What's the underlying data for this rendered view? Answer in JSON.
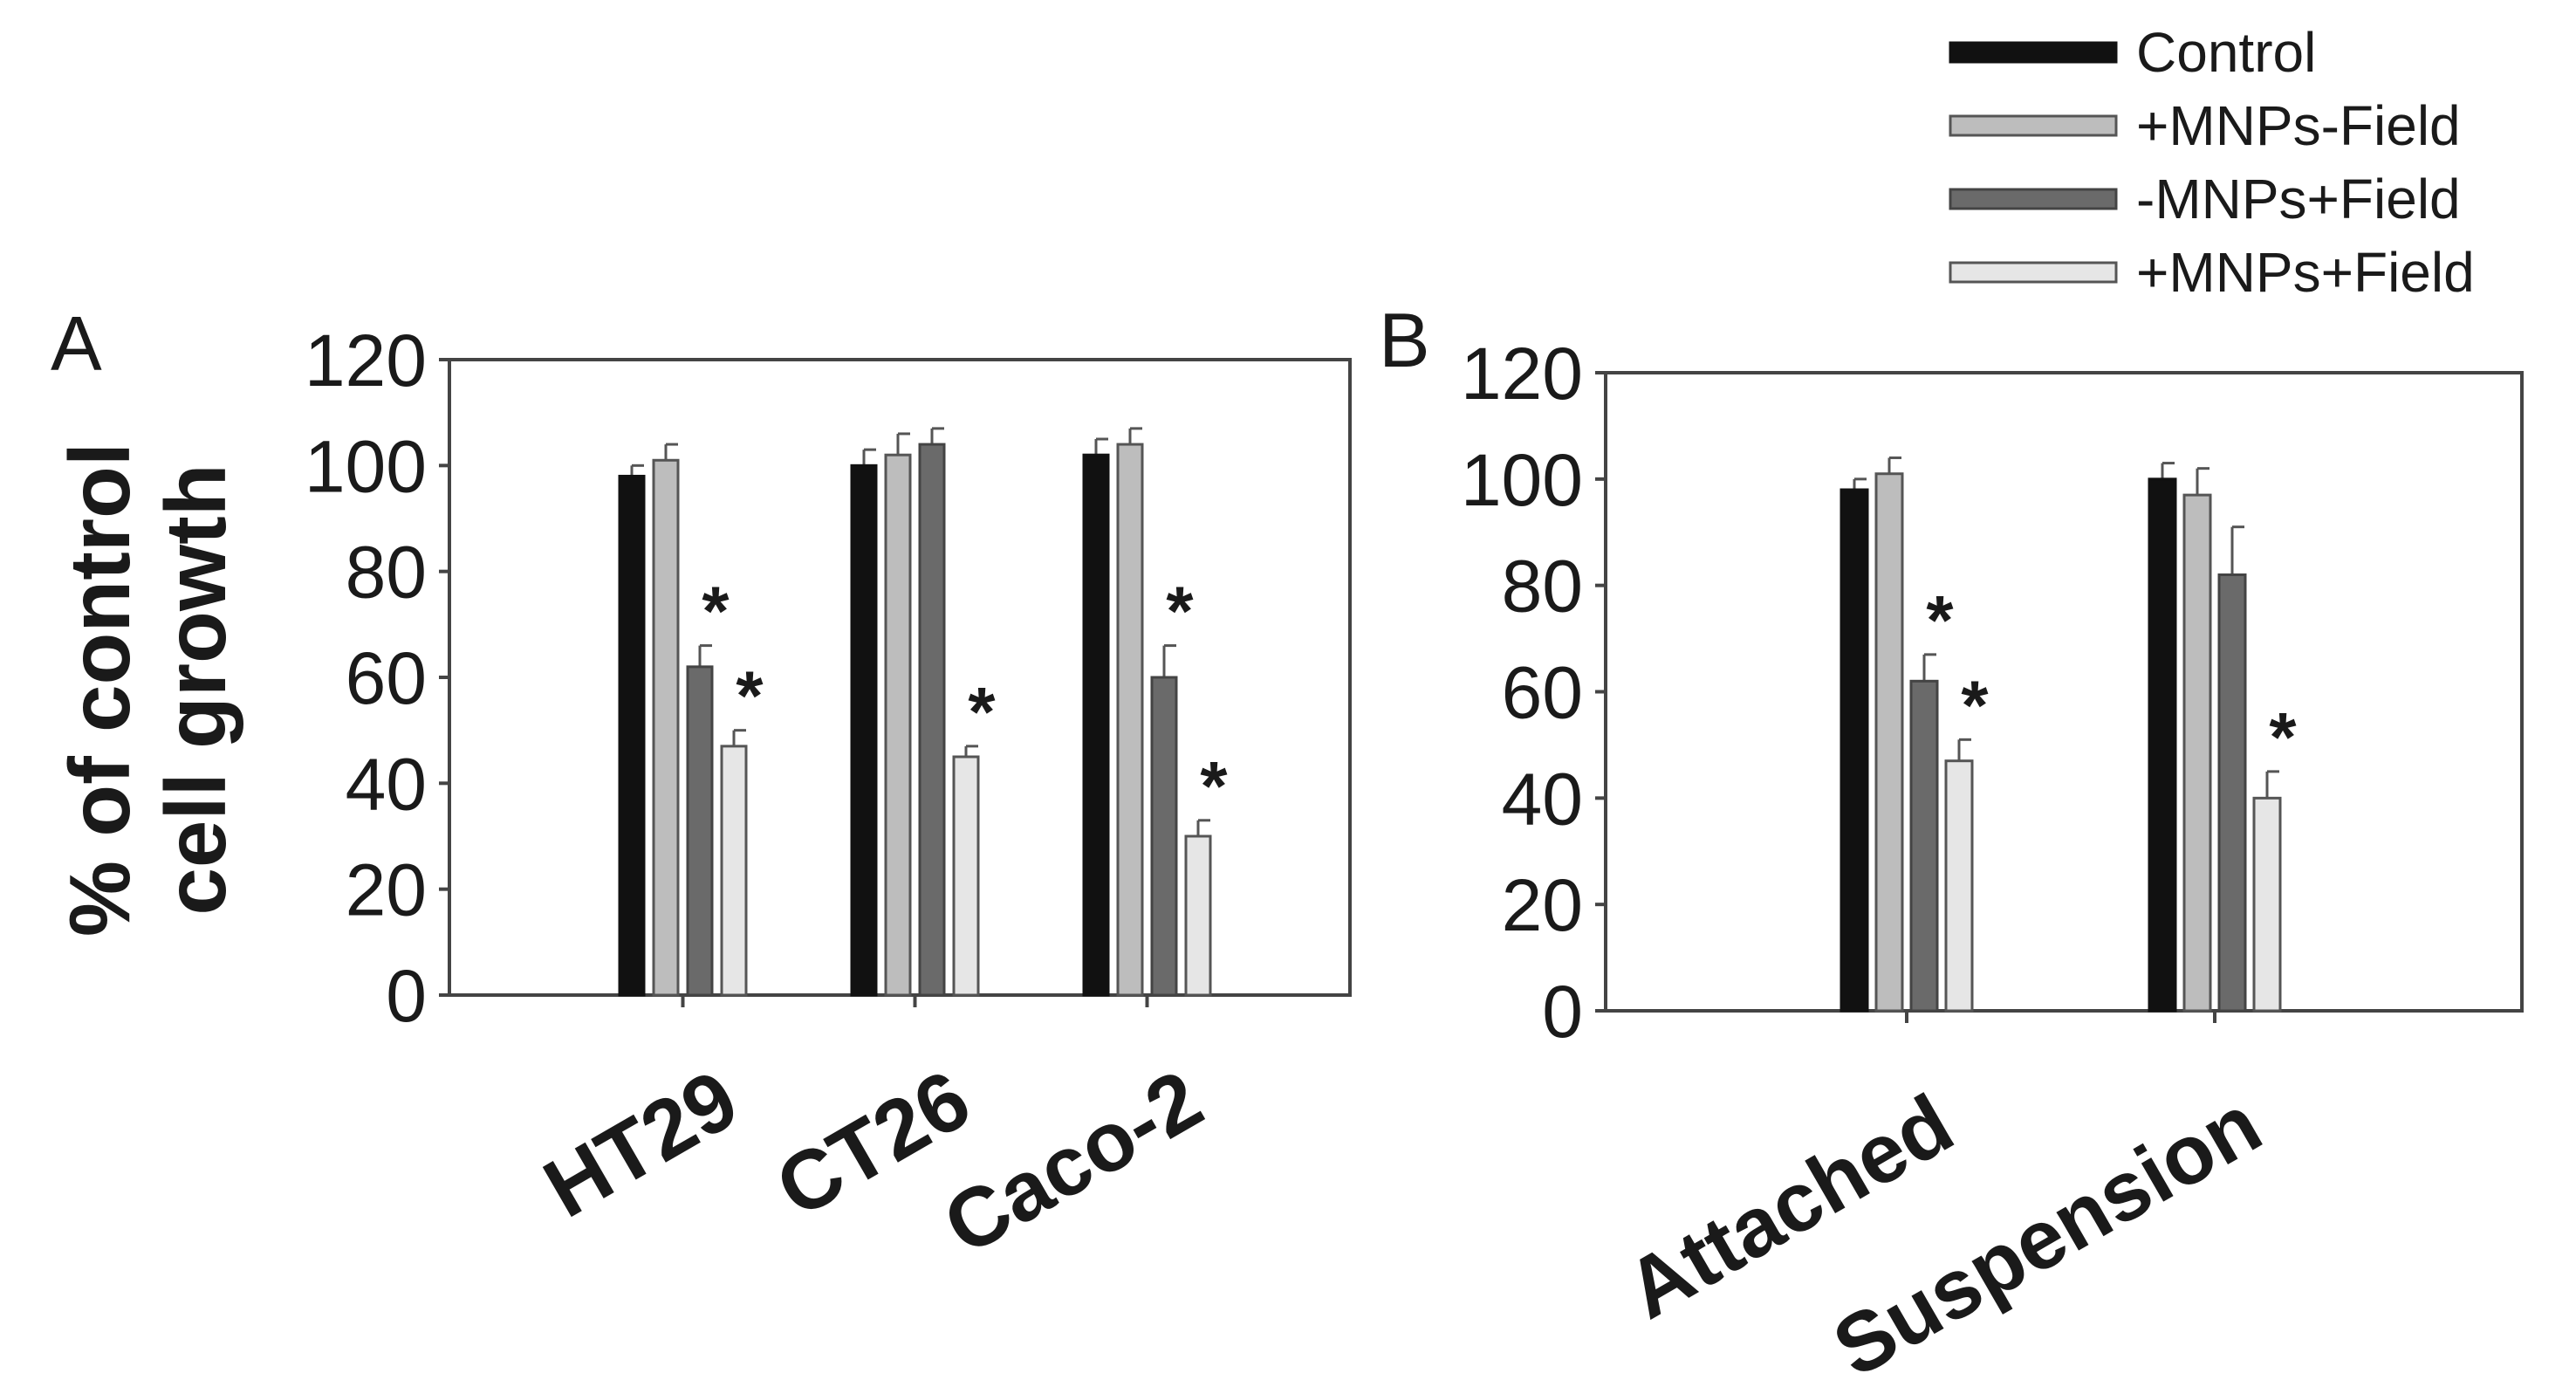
{
  "legend": [
    {
      "label": "Control",
      "fill": "#111111",
      "stroke": "#111111"
    },
    {
      "label": "+MNPs-Field",
      "fill": "#bdbdbd",
      "stroke": "#555555"
    },
    {
      "label": "-MNPs+Field",
      "fill": "#6a6a6a",
      "stroke": "#444444"
    },
    {
      "label": "+MNPs+Field",
      "fill": "#e6e6e6",
      "stroke": "#555555"
    }
  ],
  "chart_data": [
    {
      "type": "bar",
      "panel": "A",
      "ylabel_line1": "% of control",
      "ylabel_line2": "cell growth",
      "ylim": [
        0,
        120
      ],
      "yticks": [
        0,
        20,
        40,
        60,
        80,
        100,
        120
      ],
      "categories": [
        "HT29",
        "CT26",
        "Caco-2"
      ],
      "series": [
        {
          "name": "Control",
          "values": [
            98,
            100,
            102
          ],
          "errors": [
            2,
            3,
            3
          ],
          "significant": [
            false,
            false,
            false
          ]
        },
        {
          "name": "+MNPs-Field",
          "values": [
            101,
            102,
            104
          ],
          "errors": [
            3,
            4,
            3
          ],
          "significant": [
            false,
            false,
            false
          ]
        },
        {
          "name": "-MNPs+Field",
          "values": [
            62,
            104,
            60
          ],
          "errors": [
            4,
            3,
            6
          ],
          "significant": [
            true,
            false,
            true
          ]
        },
        {
          "name": "+MNPs+Field",
          "values": [
            47,
            45,
            30
          ],
          "errors": [
            3,
            2,
            3
          ],
          "significant": [
            true,
            true,
            true
          ]
        }
      ],
      "significance_mark": "*"
    },
    {
      "type": "bar",
      "panel": "B",
      "ylim": [
        0,
        120
      ],
      "yticks": [
        0,
        20,
        40,
        60,
        80,
        100,
        120
      ],
      "categories": [
        "Attached",
        "Suspension"
      ],
      "series": [
        {
          "name": "Control",
          "values": [
            98,
            100
          ],
          "errors": [
            2,
            3
          ],
          "significant": [
            false,
            false
          ]
        },
        {
          "name": "+MNPs-Field",
          "values": [
            101,
            97
          ],
          "errors": [
            3,
            5
          ],
          "significant": [
            false,
            false
          ]
        },
        {
          "name": "-MNPs+Field",
          "values": [
            62,
            82
          ],
          "errors": [
            5,
            9
          ],
          "significant": [
            true,
            false
          ]
        },
        {
          "name": "+MNPs+Field",
          "values": [
            47,
            40
          ],
          "errors": [
            4,
            5
          ],
          "significant": [
            true,
            true
          ]
        }
      ],
      "significance_mark": "*"
    }
  ]
}
